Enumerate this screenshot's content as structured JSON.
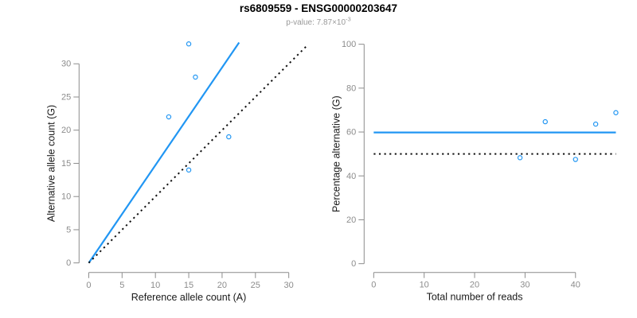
{
  "header": {
    "title": "rs6809559 - ENSG00000203647",
    "p_value_label": "p-value: 7.87×10",
    "p_value_exponent": "-3"
  },
  "colors": {
    "accent_blue": "#2196F3",
    "line_black": "#111111",
    "axis_gray": "#8C8C8C",
    "tick_label_gray": "#8C8C8C",
    "axis_title_color": "#1A1A1A",
    "background": "#FFFFFF"
  },
  "chart_data": [
    {
      "type": "scatter",
      "name": "allele-counts-plot",
      "xlabel": "Reference allele count (A)",
      "ylabel": "Alternative allele count (G)",
      "xticks": [
        0,
        5,
        10,
        15,
        20,
        25,
        30
      ],
      "yticks": [
        0,
        5,
        10,
        15,
        20,
        25,
        30
      ],
      "xlim": [
        -1.45,
        33.3
      ],
      "ylim": [
        -1.45,
        33.3
      ],
      "grid": false,
      "marker": "open-circle",
      "points": [
        {
          "x": 15,
          "y": 14
        },
        {
          "x": 12,
          "y": 22
        },
        {
          "x": 21,
          "y": 19
        },
        {
          "x": 16,
          "y": 28
        },
        {
          "x": 15,
          "y": 33
        }
      ],
      "lines": [
        {
          "name": "fit-line",
          "x1": 0,
          "y1": 0,
          "x2": 22.55,
          "y2": 33.2,
          "style": "solid",
          "color": "blue"
        },
        {
          "name": "identity-line",
          "x1": 0,
          "y1": 0,
          "x2": 32.9,
          "y2": 32.9,
          "style": "dotted",
          "color": "black"
        }
      ]
    },
    {
      "type": "scatter",
      "name": "percentage-alternative-plot",
      "xlabel": "Total number of reads",
      "ylabel": "Percentage alternative (G)",
      "xticks": [
        0,
        10,
        20,
        30,
        40
      ],
      "yticks": [
        0,
        20,
        40,
        60,
        80,
        100
      ],
      "xlim": [
        -1.9,
        49.9
      ],
      "ylim": [
        -4,
        104
      ],
      "grid": false,
      "marker": "open-circle",
      "points": [
        {
          "x": 29,
          "y": 48.3
        },
        {
          "x": 34,
          "y": 64.7
        },
        {
          "x": 40,
          "y": 47.5
        },
        {
          "x": 44,
          "y": 63.6
        },
        {
          "x": 48,
          "y": 68.8
        }
      ],
      "lines": [
        {
          "name": "fit-line",
          "x1": 0,
          "y1": 59.8,
          "x2": 48,
          "y2": 59.8,
          "style": "solid",
          "color": "blue"
        },
        {
          "name": "null-line",
          "x1": 0,
          "y1": 50,
          "x2": 48,
          "y2": 50,
          "style": "dotted",
          "color": "black"
        }
      ]
    }
  ]
}
